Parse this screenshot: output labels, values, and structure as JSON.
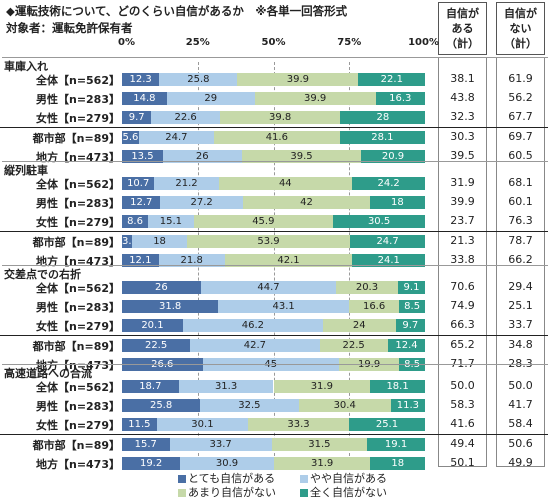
{
  "title": "◆運転技術について、どのくらい自信があるか　※各単一回答形式",
  "subtitle": "対象者：運転免許保有者",
  "axis_labels": [
    "0%",
    "25%",
    "50%",
    "75%",
    "100%"
  ],
  "column_headers": {
    "confident": [
      "自信が",
      "ある",
      "（計）"
    ],
    "not_confident": [
      "自信が",
      "ない",
      "（計）"
    ]
  },
  "legend": [
    {
      "label": "とても自信がある",
      "color": "#4a6fa5"
    },
    {
      "label": "やや自信がある",
      "color": "#aecde9"
    },
    {
      "label": "あまり自信がない",
      "color": "#c6d9a9"
    },
    {
      "label": "全く自信がない",
      "color": "#2e9c8a"
    }
  ],
  "chart_data": {
    "type": "bar",
    "orientation": "horizontal-stacked-100",
    "series_names": [
      "とても自信がある",
      "やや自信がある",
      "あまり自信がない",
      "全く自信がない"
    ],
    "xlim": [
      0,
      100
    ],
    "sections": [
      {
        "title": "車庫入れ",
        "rows": [
          {
            "label": "全体【n=562】",
            "values": [
              12.3,
              25.8,
              39.9,
              22.1
            ],
            "confident": "38.1",
            "not_confident": "61.9"
          },
          {
            "label": "男性【n=283】",
            "values": [
              14.8,
              29.0,
              39.9,
              16.3
            ],
            "confident": "43.8",
            "not_confident": "56.2"
          },
          {
            "label": "女性【n=279】",
            "values": [
              9.7,
              22.6,
              39.8,
              28.0
            ],
            "confident": "32.3",
            "not_confident": "67.7"
          },
          {
            "label": "都市部【n=89】",
            "values": [
              5.6,
              24.7,
              41.6,
              28.1
            ],
            "confident": "30.3",
            "not_confident": "69.7"
          },
          {
            "label": "地方【n=473】",
            "values": [
              13.5,
              26.0,
              39.5,
              20.9
            ],
            "confident": "39.5",
            "not_confident": "60.5"
          }
        ]
      },
      {
        "title": "縦列駐車",
        "rows": [
          {
            "label": "全体【n=562】",
            "values": [
              10.7,
              21.2,
              44.0,
              24.2
            ],
            "confident": "31.9",
            "not_confident": "68.1"
          },
          {
            "label": "男性【n=283】",
            "values": [
              12.7,
              27.2,
              42.0,
              18.0
            ],
            "confident": "39.9",
            "not_confident": "60.1"
          },
          {
            "label": "女性【n=279】",
            "values": [
              8.6,
              15.1,
              45.9,
              30.5
            ],
            "confident": "23.7",
            "not_confident": "76.3"
          },
          {
            "label": "都市部【n=89】",
            "values": [
              3.4,
              18.0,
              53.9,
              24.7
            ],
            "confident": "21.3",
            "not_confident": "78.7"
          },
          {
            "label": "地方【n=473】",
            "values": [
              12.1,
              21.8,
              42.1,
              24.1
            ],
            "confident": "33.8",
            "not_confident": "66.2"
          }
        ]
      },
      {
        "title": "交差点での右折",
        "rows": [
          {
            "label": "全体【n=562】",
            "values": [
              26.0,
              44.7,
              20.3,
              9.1
            ],
            "confident": "70.6",
            "not_confident": "29.4"
          },
          {
            "label": "男性【n=283】",
            "values": [
              31.8,
              43.1,
              16.6,
              8.5
            ],
            "confident": "74.9",
            "not_confident": "25.1"
          },
          {
            "label": "女性【n=279】",
            "values": [
              20.1,
              46.2,
              24.0,
              9.7
            ],
            "confident": "66.3",
            "not_confident": "33.7"
          },
          {
            "label": "都市部【n=89】",
            "values": [
              22.5,
              42.7,
              22.5,
              12.4
            ],
            "confident": "65.2",
            "not_confident": "34.8"
          },
          {
            "label": "地方【n=473】",
            "values": [
              26.6,
              45.0,
              19.9,
              8.5
            ],
            "confident": "71.7",
            "not_confident": "28.3"
          }
        ]
      },
      {
        "title": "高速道路への合流",
        "rows": [
          {
            "label": "全体【n=562】",
            "values": [
              18.7,
              31.3,
              31.9,
              18.1
            ],
            "confident": "50.0",
            "not_confident": "50.0"
          },
          {
            "label": "男性【n=283】",
            "values": [
              25.8,
              32.5,
              30.4,
              11.3
            ],
            "confident": "58.3",
            "not_confident": "41.7"
          },
          {
            "label": "女性【n=279】",
            "values": [
              11.5,
              30.1,
              33.3,
              25.1
            ],
            "confident": "41.6",
            "not_confident": "58.4"
          },
          {
            "label": "都市部【n=89】",
            "values": [
              15.7,
              33.7,
              31.5,
              19.1
            ],
            "confident": "49.4",
            "not_confident": "50.6"
          },
          {
            "label": "地方【n=473】",
            "values": [
              19.2,
              30.9,
              31.9,
              18.0
            ],
            "confident": "50.1",
            "not_confident": "49.9"
          }
        ]
      }
    ]
  }
}
